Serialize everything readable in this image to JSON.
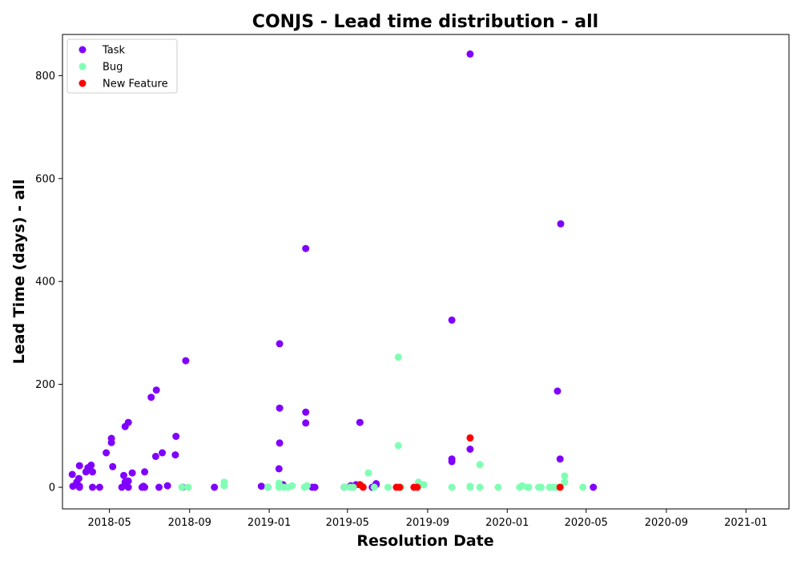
{
  "chart_data": {
    "type": "scatter",
    "title": "CONJS - Lead time distribution - all",
    "xlabel": "Resolution Date",
    "ylabel": "Lead Time (days) - all",
    "x_ticks": [
      "2018-05",
      "2018-09",
      "2019-01",
      "2019-05",
      "2019-09",
      "2020-01",
      "2020-05",
      "2020-09",
      "2021-01"
    ],
    "y_ticks": [
      "0",
      "200",
      "400",
      "600",
      "800"
    ],
    "xlim": [
      "2018-02-18",
      "2021-03-08"
    ],
    "ylim": [
      -42,
      880
    ],
    "grid": false,
    "legend_position": "top-left",
    "series": [
      {
        "name": "Task",
        "color": "#8000ff",
        "points": [
          [
            "2018-03-05",
            25
          ],
          [
            "2018-03-06",
            2
          ],
          [
            "2018-03-12",
            10
          ],
          [
            "2018-03-15",
            17
          ],
          [
            "2018-03-16",
            42
          ],
          [
            "2018-03-16",
            2
          ],
          [
            "2018-03-16",
            0
          ],
          [
            "2018-03-26",
            30
          ],
          [
            "2018-03-29",
            38
          ],
          [
            "2018-04-03",
            43
          ],
          [
            "2018-04-05",
            30
          ],
          [
            "2018-04-05",
            0
          ],
          [
            "2018-04-16",
            0
          ],
          [
            "2018-04-26",
            67
          ],
          [
            "2018-05-04",
            95
          ],
          [
            "2018-05-04",
            87
          ],
          [
            "2018-05-06",
            40
          ],
          [
            "2018-05-20",
            0
          ],
          [
            "2018-05-23",
            23
          ],
          [
            "2018-05-25",
            10
          ],
          [
            "2018-05-25",
            118
          ],
          [
            "2018-05-30",
            126
          ],
          [
            "2018-05-30",
            12
          ],
          [
            "2018-05-30",
            0
          ],
          [
            "2018-06-05",
            28
          ],
          [
            "2018-06-20",
            0
          ],
          [
            "2018-06-22",
            2
          ],
          [
            "2018-06-24",
            30
          ],
          [
            "2018-06-24",
            0
          ],
          [
            "2018-07-04",
            175
          ],
          [
            "2018-07-11",
            60
          ],
          [
            "2018-07-12",
            189
          ],
          [
            "2018-07-16",
            0
          ],
          [
            "2018-07-21",
            67
          ],
          [
            "2018-07-29",
            3
          ],
          [
            "2018-08-11",
            99
          ],
          [
            "2018-08-10",
            63
          ],
          [
            "2018-08-21",
            0
          ],
          [
            "2018-08-26",
            246
          ],
          [
            "2018-10-09",
            0
          ],
          [
            "2018-12-20",
            2
          ],
          [
            "2018-12-30",
            0
          ],
          [
            "2019-01-17",
            279
          ],
          [
            "2019-01-17",
            154
          ],
          [
            "2019-01-17",
            86
          ],
          [
            "2019-01-16",
            36
          ],
          [
            "2019-01-22",
            5
          ],
          [
            "2019-02-26",
            464
          ],
          [
            "2019-02-26",
            146
          ],
          [
            "2019-02-26",
            125
          ],
          [
            "2019-03-08",
            0
          ],
          [
            "2019-03-12",
            0
          ],
          [
            "2019-04-26",
            0
          ],
          [
            "2019-05-06",
            3
          ],
          [
            "2019-05-14",
            5
          ],
          [
            "2019-05-20",
            126
          ],
          [
            "2019-06-08",
            0
          ],
          [
            "2019-06-14",
            5
          ],
          [
            "2019-06-14",
            7
          ],
          [
            "2019-10-08",
            325
          ],
          [
            "2019-10-08",
            55
          ],
          [
            "2019-10-08",
            50
          ],
          [
            "2019-11-05",
            74
          ],
          [
            "2019-11-05",
            842
          ],
          [
            "2020-03-18",
            187
          ],
          [
            "2020-03-23",
            512
          ],
          [
            "2020-03-22",
            55
          ],
          [
            "2020-05-12",
            0
          ]
        ]
      },
      {
        "name": "Bug",
        "color": "#80ffb4",
        "points": [
          [
            "2018-08-20",
            0
          ],
          [
            "2018-08-30",
            0
          ],
          [
            "2018-10-24",
            10
          ],
          [
            "2018-10-24",
            3
          ],
          [
            "2018-12-30",
            0
          ],
          [
            "2019-01-16",
            8
          ],
          [
            "2019-01-16",
            0
          ],
          [
            "2019-01-24",
            0
          ],
          [
            "2019-01-30",
            0
          ],
          [
            "2019-02-05",
            3
          ],
          [
            "2019-02-24",
            0
          ],
          [
            "2019-02-28",
            3
          ],
          [
            "2019-04-26",
            0
          ],
          [
            "2019-05-05",
            0
          ],
          [
            "2019-05-10",
            0
          ],
          [
            "2019-05-24",
            3
          ],
          [
            "2019-06-02",
            28
          ],
          [
            "2019-06-11",
            0
          ],
          [
            "2019-07-02",
            0
          ],
          [
            "2019-07-18",
            253
          ],
          [
            "2019-07-18",
            81
          ],
          [
            "2019-07-22",
            0
          ],
          [
            "2019-08-18",
            10
          ],
          [
            "2019-08-18",
            3
          ],
          [
            "2019-08-26",
            5
          ],
          [
            "2019-10-08",
            0
          ],
          [
            "2019-11-05",
            0
          ],
          [
            "2019-11-05",
            2
          ],
          [
            "2019-11-20",
            44
          ],
          [
            "2019-11-20",
            0
          ],
          [
            "2019-12-18",
            0
          ],
          [
            "2020-01-20",
            0
          ],
          [
            "2020-01-24",
            3
          ],
          [
            "2020-02-01",
            0
          ],
          [
            "2020-02-03",
            0
          ],
          [
            "2020-02-18",
            0
          ],
          [
            "2020-02-22",
            0
          ],
          [
            "2020-03-06",
            0
          ],
          [
            "2020-03-12",
            0
          ],
          [
            "2020-03-17",
            0
          ],
          [
            "2020-03-29",
            10
          ],
          [
            "2020-03-29",
            22
          ],
          [
            "2020-04-26",
            0
          ]
        ]
      },
      {
        "name": "New Feature",
        "color": "#ff0000",
        "points": [
          [
            "2019-05-20",
            5
          ],
          [
            "2019-05-25",
            0
          ],
          [
            "2019-07-15",
            0
          ],
          [
            "2019-07-20",
            0
          ],
          [
            "2019-08-11",
            0
          ],
          [
            "2019-08-16",
            0
          ],
          [
            "2019-11-05",
            96
          ],
          [
            "2020-03-22",
            0
          ]
        ]
      }
    ]
  }
}
